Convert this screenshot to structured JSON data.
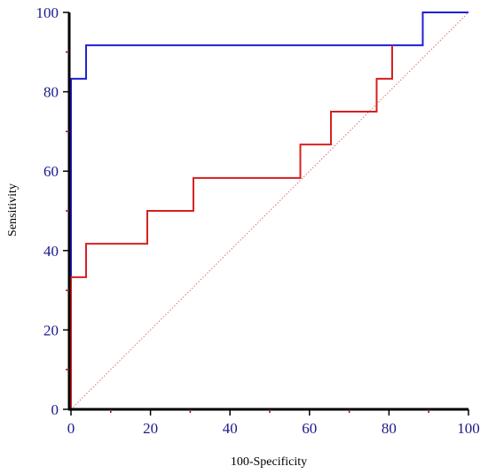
{
  "chart_data": {
    "type": "line",
    "title": "",
    "xlabel": "100-Specificity",
    "ylabel": "Sensitivity",
    "xlim": [
      0,
      100
    ],
    "ylim": [
      0,
      100
    ],
    "xticks": [
      "0",
      "20",
      "40",
      "60",
      "80",
      "100"
    ],
    "yticks": [
      "0",
      "20",
      "40",
      "60",
      "80",
      "100"
    ],
    "grid": false,
    "legend": "none",
    "reference_line": {
      "x": [
        0,
        100
      ],
      "y": [
        0,
        100
      ],
      "style": "dotted",
      "color": "#e07070"
    },
    "series": [
      {
        "color": "#1f1fd6",
        "x": [
          0,
          0,
          3.8,
          3.8,
          88.5,
          88.5,
          100
        ],
        "y": [
          0,
          83.3,
          83.3,
          91.7,
          91.7,
          100,
          100
        ]
      },
      {
        "color": "#d62020",
        "x": [
          0,
          0,
          3.8,
          3.8,
          19.2,
          19.2,
          30.8,
          30.8,
          57.7,
          57.7,
          65.4,
          65.4,
          76.9,
          76.9,
          80.8,
          80.8
        ],
        "y": [
          0,
          33.3,
          33.3,
          41.7,
          41.7,
          50,
          50,
          58.3,
          58.3,
          66.7,
          66.7,
          75,
          75,
          83.3,
          83.3,
          91.7
        ]
      }
    ]
  }
}
